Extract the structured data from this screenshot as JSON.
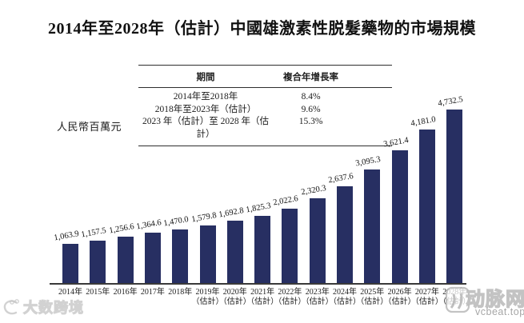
{
  "title": "2014年至2028年（估計）中國雄激素性脱髮藥物的市場規模",
  "y_axis_label": "人民幣百萬元",
  "cagr_table": {
    "headers": [
      "期間",
      "複合年增長率"
    ],
    "rows": [
      {
        "period": "2014年至2018年",
        "cagr": "8.4%"
      },
      {
        "period": "2018年至2023年（估計）",
        "cagr": "9.6%"
      },
      {
        "period": "2023 年（估計）至 2028 年（估計）",
        "cagr": "15.3%"
      }
    ]
  },
  "chart_data": {
    "type": "bar",
    "title": "2014年至2028年（估計）中國雄激素性脱髮藥物的市場規模",
    "xlabel": "",
    "ylabel": "人民幣百萬元",
    "categories": [
      "2014年",
      "2015年",
      "2016年",
      "2017年",
      "2018年",
      "2019年（估計）",
      "2020年（估計）",
      "2021年（估計）",
      "2022年（估計）",
      "2023年（估計）",
      "2024年（估計）",
      "2025年（估計）",
      "2026年（估計）",
      "2027年（估計）",
      "2028年（估計）"
    ],
    "values": [
      1063.9,
      1157.5,
      1256.6,
      1364.6,
      1470.0,
      1579.8,
      1692.8,
      1825.3,
      2022.6,
      2320.3,
      2637.6,
      3095.3,
      3621.4,
      4181.0,
      4732.5
    ],
    "value_labels": [
      "1,063.9",
      "1,157.5",
      "1,256.6",
      "1,364.6",
      "1,470.0",
      "1,579.8",
      "1,692.8",
      "1,825.3",
      "2,022.6",
      "2,320.3",
      "2,637.6",
      "3,095.3",
      "3,621.4",
      "4,181.0",
      "4,732.5"
    ],
    "bar_color": "#272f62",
    "ylim": [
      0,
      5000
    ],
    "grid": false,
    "legend": "none"
  },
  "watermarks": {
    "bottom_left": "大数跨境",
    "bottom_right_name": "动脉网",
    "bottom_right_site": "vcbeat.top"
  }
}
